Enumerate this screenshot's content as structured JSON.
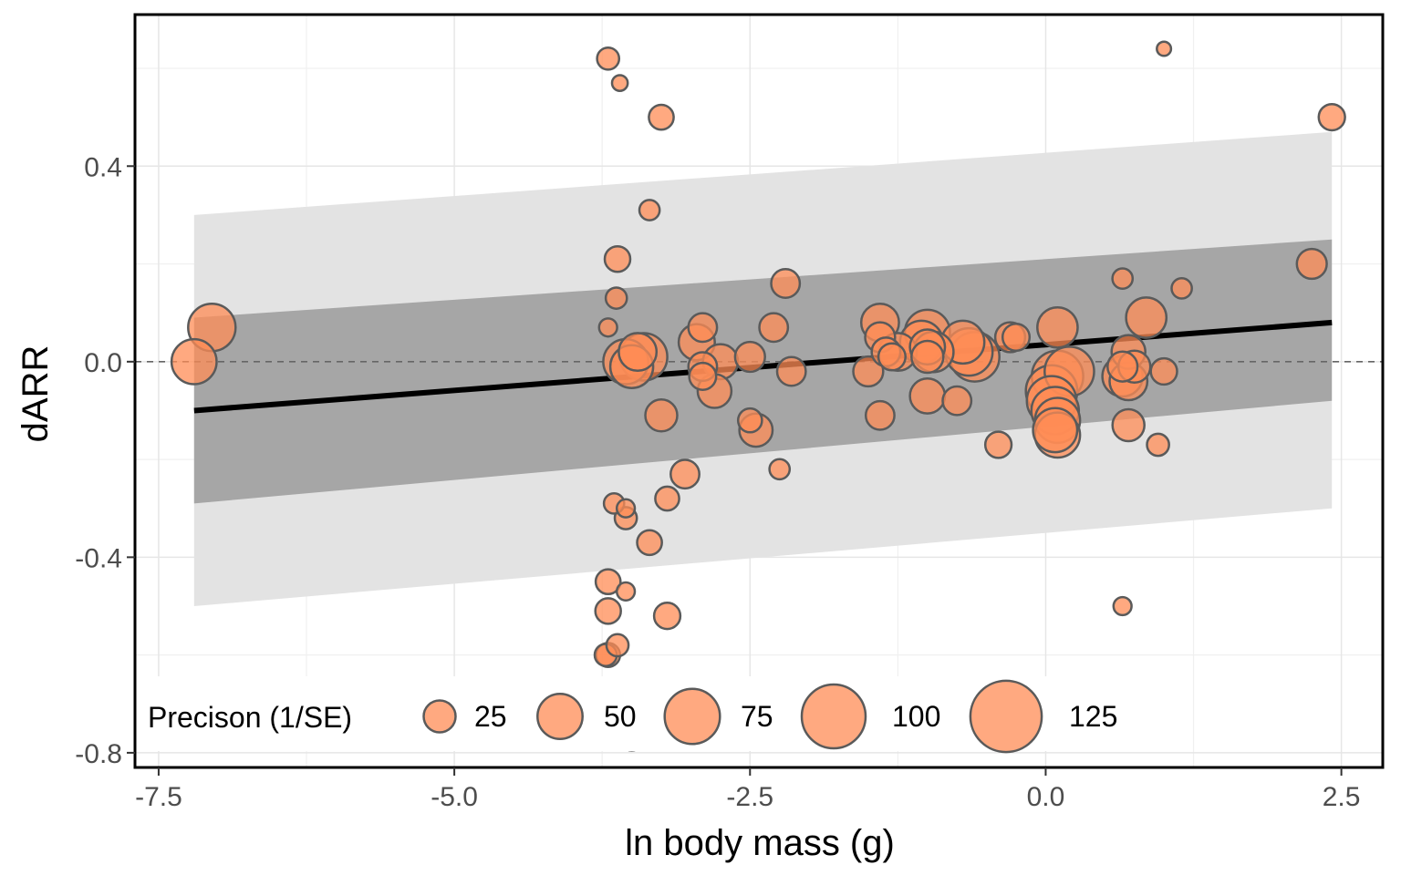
{
  "chart_data": {
    "type": "scatter",
    "xlabel": "ln body mass (g)",
    "ylabel": "dARR",
    "xlim": [
      -7.7,
      2.85
    ],
    "ylim": [
      -0.83,
      0.71
    ],
    "x_ticks": [
      -7.5,
      -5.0,
      -2.5,
      0.0,
      2.5
    ],
    "x_tick_labels": [
      "-7.5",
      "-5.0",
      "-2.5",
      "0.0",
      "2.5"
    ],
    "y_ticks": [
      -0.8,
      -0.4,
      0.0,
      0.4
    ],
    "y_tick_labels": [
      "-0.8",
      "-0.4",
      "0.0",
      "0.4"
    ],
    "grid": true,
    "reference_line_y": 0.0,
    "regression": {
      "x": [
        -7.2,
        2.42
      ],
      "y": [
        -0.1,
        0.08
      ],
      "ci_lower": [
        -0.29,
        -0.08
      ],
      "ci_upper": [
        0.09,
        0.25
      ],
      "pi_lower": [
        -0.5,
        -0.3
      ],
      "pi_upper": [
        0.3,
        0.47
      ]
    },
    "legend": {
      "title": "Precison (1/SE)",
      "position": "bottom-inside",
      "sizes": [
        25,
        50,
        75,
        100,
        125
      ],
      "labels": [
        "25",
        "50",
        "75",
        "100",
        "125"
      ]
    },
    "colors": {
      "point_fill": "#ff8c55",
      "point_stroke": "#5a5a5a",
      "ci_band": "#a6a6a6",
      "pi_band": "#e3e3e3",
      "regression_line": "#000000"
    },
    "points": [
      {
        "x": -7.05,
        "y": 0.07,
        "precision": 55
      },
      {
        "x": -7.2,
        "y": 0.0,
        "precision": 50
      },
      {
        "x": -3.7,
        "y": 0.62,
        "precision": 12
      },
      {
        "x": -3.6,
        "y": 0.57,
        "precision": 6
      },
      {
        "x": -3.25,
        "y": 0.5,
        "precision": 15
      },
      {
        "x": -3.35,
        "y": 0.31,
        "precision": 10
      },
      {
        "x": -3.62,
        "y": 0.21,
        "precision": 16
      },
      {
        "x": -3.63,
        "y": 0.13,
        "precision": 11
      },
      {
        "x": -3.7,
        "y": 0.07,
        "precision": 8
      },
      {
        "x": -3.55,
        "y": 0.0,
        "precision": 50
      },
      {
        "x": -3.4,
        "y": 0.01,
        "precision": 55
      },
      {
        "x": -3.45,
        "y": 0.02,
        "precision": 35
      },
      {
        "x": -3.5,
        "y": -0.01,
        "precision": 45
      },
      {
        "x": -3.25,
        "y": -0.11,
        "precision": 25
      },
      {
        "x": -2.9,
        "y": 0.07,
        "precision": 20
      },
      {
        "x": -2.95,
        "y": 0.04,
        "precision": 32
      },
      {
        "x": -2.75,
        "y": 0.0,
        "precision": 30
      },
      {
        "x": -2.9,
        "y": -0.01,
        "precision": 20
      },
      {
        "x": -2.9,
        "y": -0.03,
        "precision": 18
      },
      {
        "x": -2.8,
        "y": -0.06,
        "precision": 28
      },
      {
        "x": -2.5,
        "y": 0.01,
        "precision": 22
      },
      {
        "x": -2.3,
        "y": 0.07,
        "precision": 20
      },
      {
        "x": -2.2,
        "y": 0.16,
        "precision": 20
      },
      {
        "x": -2.15,
        "y": -0.02,
        "precision": 20
      },
      {
        "x": -2.5,
        "y": -0.12,
        "precision": 14
      },
      {
        "x": -2.45,
        "y": -0.14,
        "precision": 27
      },
      {
        "x": -2.25,
        "y": -0.22,
        "precision": 10
      },
      {
        "x": -3.05,
        "y": -0.23,
        "precision": 20
      },
      {
        "x": -3.2,
        "y": -0.28,
        "precision": 14
      },
      {
        "x": -3.65,
        "y": -0.29,
        "precision": 10
      },
      {
        "x": -3.55,
        "y": -0.3,
        "precision": 8
      },
      {
        "x": -3.55,
        "y": -0.32,
        "precision": 12
      },
      {
        "x": -3.35,
        "y": -0.37,
        "precision": 15
      },
      {
        "x": -3.7,
        "y": -0.45,
        "precision": 15
      },
      {
        "x": -3.55,
        "y": -0.47,
        "precision": 8
      },
      {
        "x": -3.7,
        "y": -0.51,
        "precision": 16
      },
      {
        "x": -3.2,
        "y": -0.52,
        "precision": 17
      },
      {
        "x": -3.7,
        "y": -0.6,
        "precision": 14
      },
      {
        "x": -3.72,
        "y": -0.6,
        "precision": 12
      },
      {
        "x": -3.62,
        "y": -0.58,
        "precision": 12
      },
      {
        "x": -3.5,
        "y": -0.77,
        "precision": 15
      },
      {
        "x": -1.4,
        "y": 0.08,
        "precision": 35
      },
      {
        "x": -1.4,
        "y": 0.05,
        "precision": 22
      },
      {
        "x": -1.35,
        "y": 0.02,
        "precision": 20
      },
      {
        "x": -1.3,
        "y": 0.01,
        "precision": 18
      },
      {
        "x": -1.25,
        "y": 0.02,
        "precision": 35
      },
      {
        "x": -1.5,
        "y": -0.02,
        "precision": 22
      },
      {
        "x": -1.4,
        "y": -0.11,
        "precision": 20
      },
      {
        "x": -1.0,
        "y": 0.06,
        "precision": 50
      },
      {
        "x": -1.05,
        "y": 0.04,
        "precision": 45
      },
      {
        "x": -1.0,
        "y": 0.03,
        "precision": 30
      },
      {
        "x": -0.95,
        "y": 0.02,
        "precision": 40
      },
      {
        "x": -1.0,
        "y": 0.01,
        "precision": 25
      },
      {
        "x": -1.0,
        "y": -0.07,
        "precision": 30
      },
      {
        "x": -0.75,
        "y": -0.08,
        "precision": 20
      },
      {
        "x": -0.7,
        "y": 0.04,
        "precision": 45
      },
      {
        "x": -0.65,
        "y": 0.02,
        "precision": 55
      },
      {
        "x": -0.6,
        "y": 0.01,
        "precision": 60
      },
      {
        "x": -0.3,
        "y": 0.05,
        "precision": 22
      },
      {
        "x": -0.25,
        "y": 0.05,
        "precision": 18
      },
      {
        "x": -0.4,
        "y": -0.17,
        "precision": 17
      },
      {
        "x": 0.1,
        "y": 0.07,
        "precision": 40
      },
      {
        "x": 0.2,
        "y": -0.02,
        "precision": 60
      },
      {
        "x": 0.1,
        "y": -0.03,
        "precision": 65
      },
      {
        "x": 0.05,
        "y": -0.06,
        "precision": 65
      },
      {
        "x": 0.05,
        "y": -0.08,
        "precision": 60
      },
      {
        "x": 0.08,
        "y": -0.1,
        "precision": 55
      },
      {
        "x": 0.1,
        "y": -0.12,
        "precision": 50
      },
      {
        "x": 0.08,
        "y": -0.14,
        "precision": 48
      },
      {
        "x": 0.1,
        "y": -0.15,
        "precision": 50
      },
      {
        "x": 0.65,
        "y": 0.17,
        "precision": 10
      },
      {
        "x": 0.85,
        "y": 0.09,
        "precision": 40
      },
      {
        "x": 0.7,
        "y": 0.02,
        "precision": 28
      },
      {
        "x": 0.65,
        "y": -0.03,
        "precision": 40
      },
      {
        "x": 0.7,
        "y": -0.04,
        "precision": 35
      },
      {
        "x": 0.65,
        "y": -0.01,
        "precision": 22
      },
      {
        "x": 0.75,
        "y": -0.01,
        "precision": 25
      },
      {
        "x": 0.7,
        "y": -0.13,
        "precision": 25
      },
      {
        "x": 1.0,
        "y": -0.02,
        "precision": 17
      },
      {
        "x": 0.95,
        "y": -0.17,
        "precision": 12
      },
      {
        "x": 1.15,
        "y": 0.15,
        "precision": 10
      },
      {
        "x": 1.0,
        "y": 0.64,
        "precision": 5
      },
      {
        "x": 0.65,
        "y": -0.5,
        "precision": 8
      },
      {
        "x": 2.25,
        "y": 0.2,
        "precision": 22
      },
      {
        "x": 2.42,
        "y": 0.5,
        "precision": 17
      }
    ]
  }
}
